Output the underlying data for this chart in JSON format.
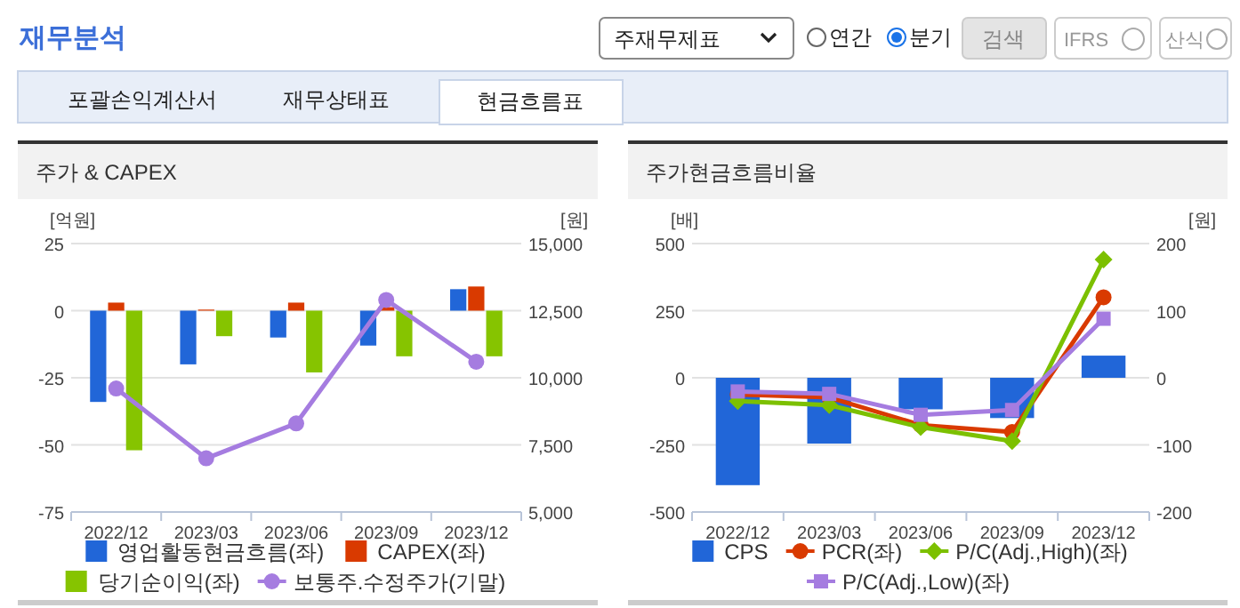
{
  "chart_data": [
    {
      "type": "bar",
      "title": "주가 & CAPEX",
      "ylabel": "[억원]",
      "y2label": "[원]",
      "annotations": [
        "재무분석",
        "주재무제표",
        "연간",
        "분기",
        "검색",
        "IFRS",
        "산식",
        "포괄손익계산서",
        "재무상태표",
        "현금흐름표"
      ],
      "categories": [
        "2022/12",
        "2023/03",
        "2023/06",
        "2023/09",
        "2023/12"
      ],
      "series": [
        {
          "name": "영업활동현금흐름(좌)",
          "color": "#2166d8",
          "values": [
            -34,
            -20,
            -10,
            -13,
            8
          ]
        },
        {
          "name": "CAPEX(좌)",
          "color": "#d93a00",
          "values": [
            3,
            0.4,
            3,
            1.3,
            9
          ]
        },
        {
          "name": "당기순이익(좌)",
          "color": "#86c400",
          "values": [
            -52,
            -9.5,
            -23,
            -17,
            -17
          ]
        },
        {
          "name": "보통주.수정주가(기말)",
          "color": "#a57ce0",
          "type": "line",
          "axis": "y2",
          "marker": "circle",
          "values": [
            9600,
            7000,
            8300,
            12900,
            10600
          ]
        }
      ],
      "ylim": [
        -75,
        25
      ],
      "yticks": [
        {
          "value": -75,
          "label": "-75"
        },
        {
          "value": -50,
          "label": "-50"
        },
        {
          "value": -25,
          "label": "-25"
        },
        {
          "value": 0,
          "label": "0"
        },
        {
          "value": 25,
          "label": "25"
        }
      ],
      "y2lim": [
        5000,
        15000
      ],
      "y2ticks": [
        {
          "value": 5000,
          "label": "5,000"
        },
        {
          "value": 7500,
          "label": "7,500"
        },
        {
          "value": 10000,
          "label": "10,000"
        },
        {
          "value": 12500,
          "label": "12,500"
        },
        {
          "value": 15000,
          "label": "15,000"
        }
      ],
      "grid": "y",
      "legend": "bottom"
    },
    {
      "type": "bar",
      "title": "주가현금흐름비율",
      "ylabel": "[배]",
      "y2label": "[원]",
      "categories": [
        "2022/12",
        "2023/03",
        "2023/06",
        "2023/09",
        "2023/12"
      ],
      "series": [
        {
          "name": "CPS",
          "color": "#2166d8",
          "axis": "y2",
          "values": [
            -160,
            -98,
            -47,
            -60,
            33
          ]
        },
        {
          "name": "PCR(좌)",
          "color": "#d93a00",
          "type": "line",
          "marker": "circle",
          "values": [
            -62,
            -73,
            -176,
            -202,
            300
          ]
        },
        {
          "name": "P/C(Adj.,High)(좌)",
          "color": "#7cc000",
          "type": "line",
          "marker": "diamond",
          "values": [
            -87,
            -102,
            -184,
            -236,
            440
          ]
        },
        {
          "name": "P/C(Adj.,Low)(좌)",
          "color": "#a57ce0",
          "type": "line",
          "marker": "square",
          "values": [
            -51,
            -60,
            -138,
            -120,
            220
          ]
        }
      ],
      "ylim": [
        -500,
        500
      ],
      "yticks": [
        {
          "value": -500,
          "label": "-500"
        },
        {
          "value": -250,
          "label": "-250"
        },
        {
          "value": 0,
          "label": "0"
        },
        {
          "value": 250,
          "label": "250"
        },
        {
          "value": 500,
          "label": "500"
        }
      ],
      "y2lim": [
        -200,
        200
      ],
      "y2ticks": [
        -200,
        -100,
        0,
        100,
        200
      ],
      "grid": "y",
      "legend": "bottom"
    }
  ]
}
